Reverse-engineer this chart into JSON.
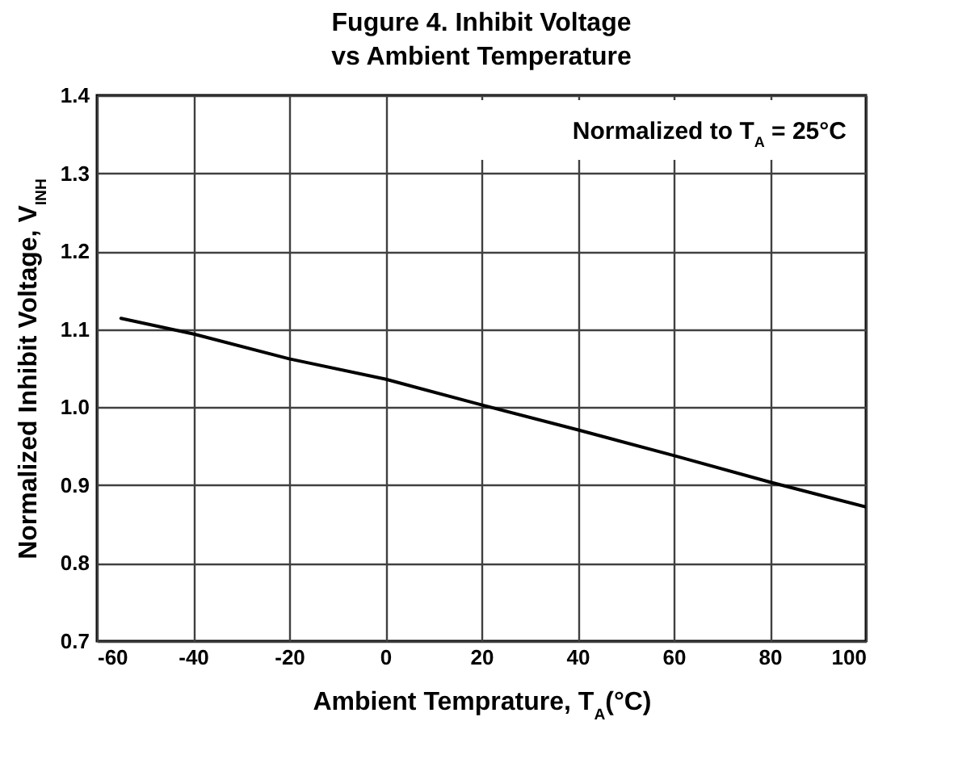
{
  "chart_data": {
    "type": "line",
    "title": "Fugure 4. Inhibit Voltage\nvs Ambient Temperature",
    "xlabel": "Ambient Temprature, T$_{A}$(°C)",
    "ylabel": "Normalized Inhibit Voltage, V$_{INH}$",
    "annotations": [
      "Normalized to T$_{A}$ = 25°C"
    ],
    "x": [
      -55,
      -40,
      -20,
      0,
      20,
      40,
      60,
      80,
      100
    ],
    "series": [
      {
        "color": "#000000",
        "values": [
          1.114,
          1.094,
          1.062,
          1.036,
          1.003,
          0.971,
          0.938,
          0.904,
          0.872
        ]
      }
    ],
    "xlim": [
      -60,
      100
    ],
    "xticks": [
      -60,
      -40,
      -20,
      0,
      20,
      40,
      60,
      80,
      100
    ],
    "ylim": [
      0.7,
      1.4
    ],
    "yticks": [
      0.7,
      0.8,
      0.9,
      {
        "value": 1,
        "label": "1.0"
      },
      1.1,
      1.2,
      1.3,
      1.4
    ],
    "grid": true,
    "marker": "none",
    "line_style": "solid"
  }
}
